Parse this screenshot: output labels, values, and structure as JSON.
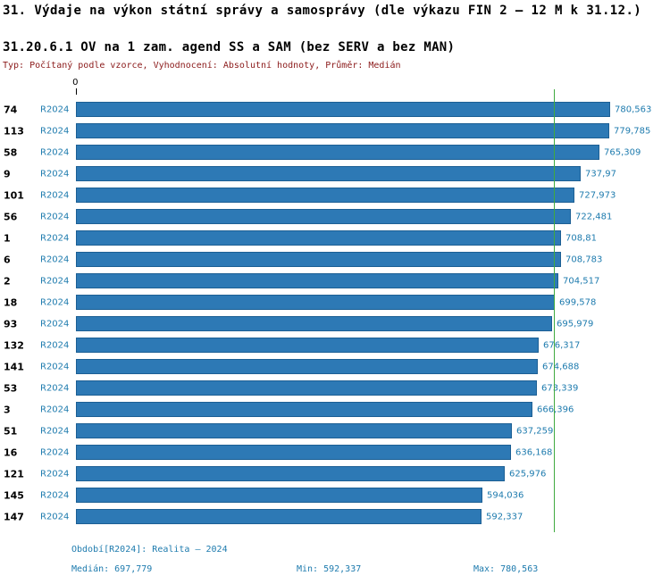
{
  "header": {
    "title": "31. Výdaje na výkon státní správy a samosprávy (dle výkazu FIN 2 – 12 M k 31.12.)",
    "subtitle": "31.20.6.1 OV na 1 zam. agend SS a SAM (bez SERV a bez MAN)",
    "meta": "Typ: Počítaný podle vzorce, Vyhodnocení: Absolutní hodnoty, Průměr: Medián"
  },
  "chart_data": {
    "type": "bar",
    "orientation": "horizontal",
    "origin_label": "0",
    "series_name": "R2024",
    "categories": [
      "74",
      "113",
      "58",
      "9",
      "101",
      "56",
      "1",
      "6",
      "2",
      "18",
      "93",
      "132",
      "141",
      "53",
      "3",
      "51",
      "16",
      "121",
      "145",
      "147"
    ],
    "values": [
      780.563,
      779.785,
      765.309,
      737.97,
      727.973,
      722.481,
      708.81,
      708.783,
      704.517,
      699.578,
      695.979,
      676.317,
      674.688,
      673.339,
      666.396,
      637.259,
      636.168,
      625.976,
      594.036,
      592.337
    ],
    "value_labels": [
      "780,563",
      "779,785",
      "765,309",
      "737,97",
      "727,973",
      "722,481",
      "708,81",
      "708,783",
      "704,517",
      "699,578",
      "695,979",
      "676,317",
      "674,688",
      "673,339",
      "666,396",
      "637,259",
      "636,168",
      "625,976",
      "594,036",
      "592,337"
    ],
    "median": 697.779,
    "xlim": [
      0,
      780.563
    ],
    "median_line": true,
    "grid": false,
    "legend_position": "none"
  },
  "footer": {
    "period": "Období[R2024]: Realita – 2024",
    "median": "Medián: 697,779",
    "min": "Min: 592,337",
    "max": "Max: 780,563"
  },
  "colors": {
    "bar": "#2d79b5",
    "bar_border": "#1c5f94",
    "accent_text": "#1e7bae",
    "median_line": "#3faa3f",
    "meta_text": "#8b1a1a",
    "title_text": "#000000"
  }
}
